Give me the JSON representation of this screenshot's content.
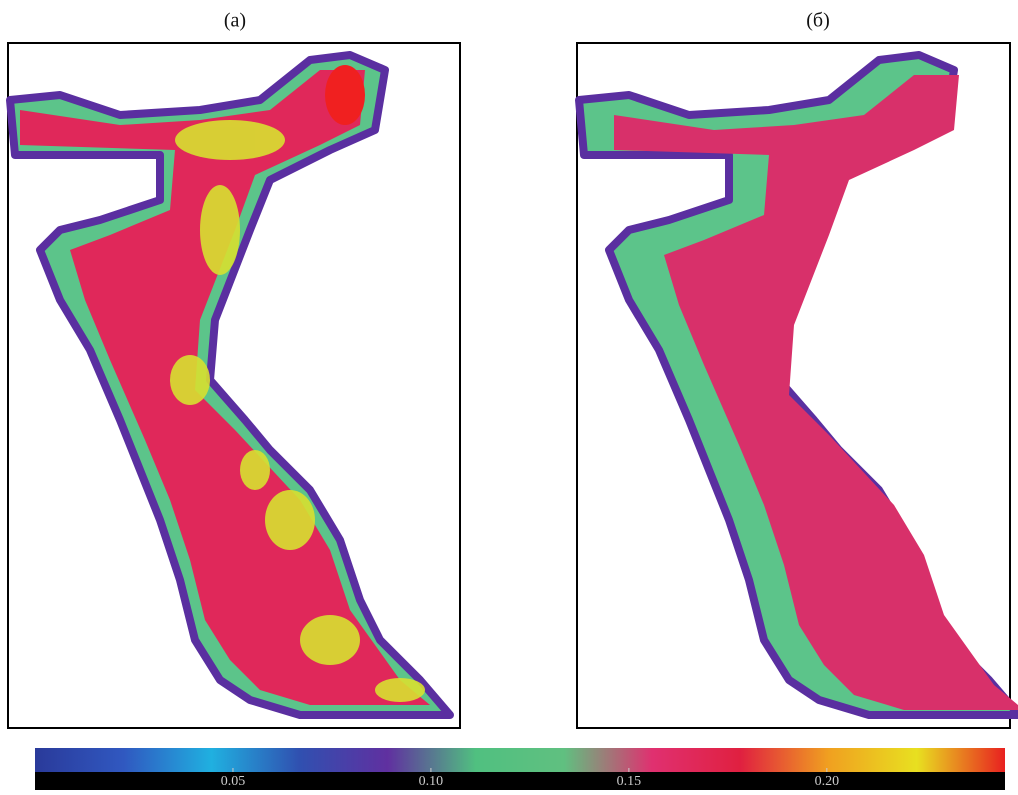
{
  "panels": [
    {
      "label": "(а)"
    },
    {
      "label": "(б)"
    }
  ],
  "colorbar": {
    "range": [
      0,
      0.245
    ],
    "ticks": [
      {
        "value": 0.05,
        "label": "0.05"
      },
      {
        "value": 0.1,
        "label": "0.10"
      },
      {
        "value": 0.15,
        "label": "0.15"
      },
      {
        "value": 0.2,
        "label": "0.20"
      }
    ],
    "colors": [
      "#2a3a9a",
      "#3058c0",
      "#20b0e0",
      "#3050b0",
      "#6030a0",
      "#50c080",
      "#60c080",
      "#e03070",
      "#e02040",
      "#f0a020",
      "#e8e020",
      "#e82020"
    ]
  }
}
